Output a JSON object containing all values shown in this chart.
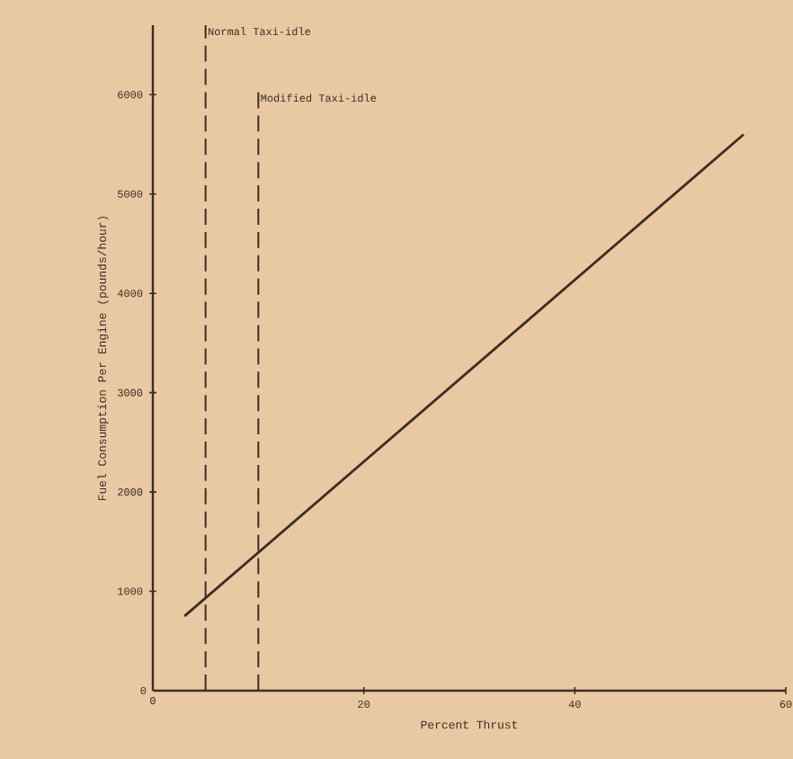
{
  "chart_data": {
    "type": "line",
    "xlabel": "Percent Thrust",
    "ylabel": "Fuel Consumption Per Engine (pounds/hour)",
    "x": [
      3,
      56
    ],
    "series": [
      {
        "color": "#3e2c22",
        "values": [
          750,
          5600
        ]
      }
    ],
    "xlim": [
      0,
      60
    ],
    "ylim": [
      0,
      6700
    ],
    "xticks": [
      0,
      20,
      40,
      60
    ],
    "yticks": [
      0,
      1000,
      2000,
      3000,
      4000,
      5000,
      6000
    ],
    "ref_lines": [
      {
        "axis": "x",
        "value": 5,
        "label": "Normal Taxi-idle",
        "line_style": "dashed"
      },
      {
        "axis": "x",
        "value": 10,
        "label": "Modified Taxi-idle",
        "line_style": "dashed"
      }
    ],
    "marker": "none",
    "line_style": "solid"
  }
}
